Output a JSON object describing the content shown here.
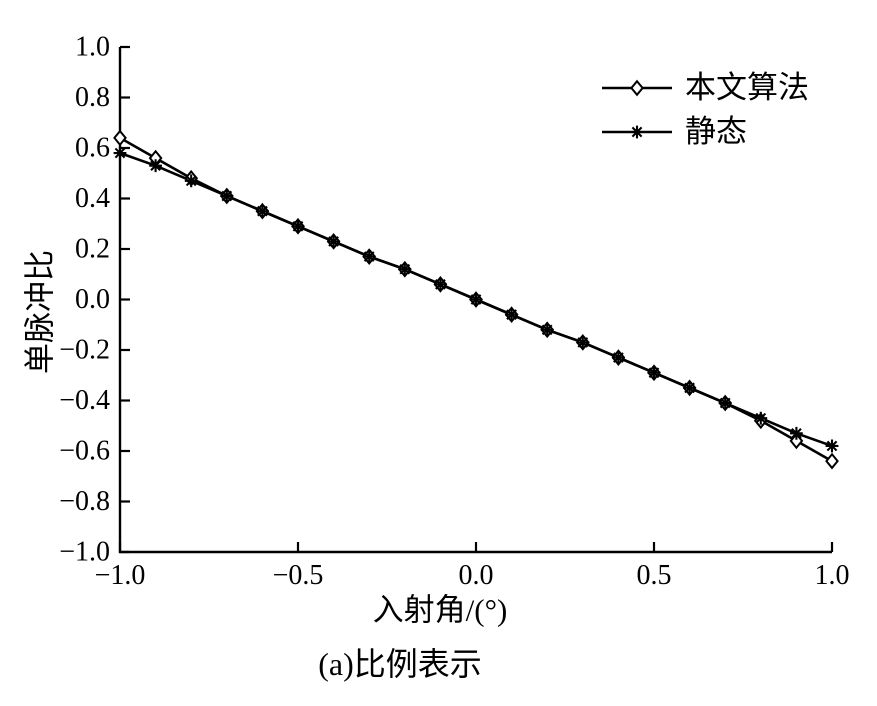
{
  "figure": {
    "background": "#ffffff",
    "ink": "#000000"
  },
  "chart_data": {
    "type": "line",
    "title": "",
    "xlabel": "入射角/(°)",
    "ylabel": "单脉冲比",
    "caption": "(a)比例表示",
    "grid": false,
    "legend_position": "upper-right-inside-no-border",
    "xlim": [
      -1.0,
      1.0
    ],
    "ylim": [
      -1.0,
      1.0
    ],
    "x_ticks": [
      -1.0,
      -0.5,
      0.0,
      0.5,
      1.0
    ],
    "x_tick_labels": [
      "−1.0",
      "−0.5",
      "0.0",
      "0.5",
      "1.0"
    ],
    "y_ticks": [
      1.0,
      0.8,
      0.6,
      0.4,
      0.2,
      0.0,
      -0.2,
      -0.4,
      -0.6,
      -0.8,
      -1.0
    ],
    "y_tick_labels": [
      "1.0",
      "0.8",
      "0.6",
      "0.4",
      "0.2",
      "0.0",
      "−0.2",
      "−0.4",
      "−0.6",
      "−0.8",
      "−1.0"
    ],
    "x": [
      -1.0,
      -0.9,
      -0.8,
      -0.7,
      -0.6,
      -0.5,
      -0.4,
      -0.3,
      -0.2,
      -0.1,
      0.0,
      0.1,
      0.2,
      0.3,
      0.4,
      0.5,
      0.6,
      0.7,
      0.8,
      0.9,
      1.0
    ],
    "series": [
      {
        "name": "本文算法",
        "marker": "open-diamond",
        "color": "#000000",
        "values": [
          0.64,
          0.56,
          0.48,
          0.41,
          0.35,
          0.29,
          0.23,
          0.17,
          0.12,
          0.06,
          0.0,
          -0.06,
          -0.12,
          -0.17,
          -0.23,
          -0.29,
          -0.35,
          -0.41,
          -0.48,
          -0.56,
          -0.64
        ]
      },
      {
        "name": "静态",
        "marker": "asterisk",
        "color": "#000000",
        "values": [
          0.58,
          0.53,
          0.47,
          0.41,
          0.35,
          0.29,
          0.23,
          0.17,
          0.12,
          0.06,
          0.0,
          -0.06,
          -0.12,
          -0.17,
          -0.23,
          -0.29,
          -0.35,
          -0.41,
          -0.47,
          -0.53,
          -0.58
        ]
      }
    ]
  }
}
